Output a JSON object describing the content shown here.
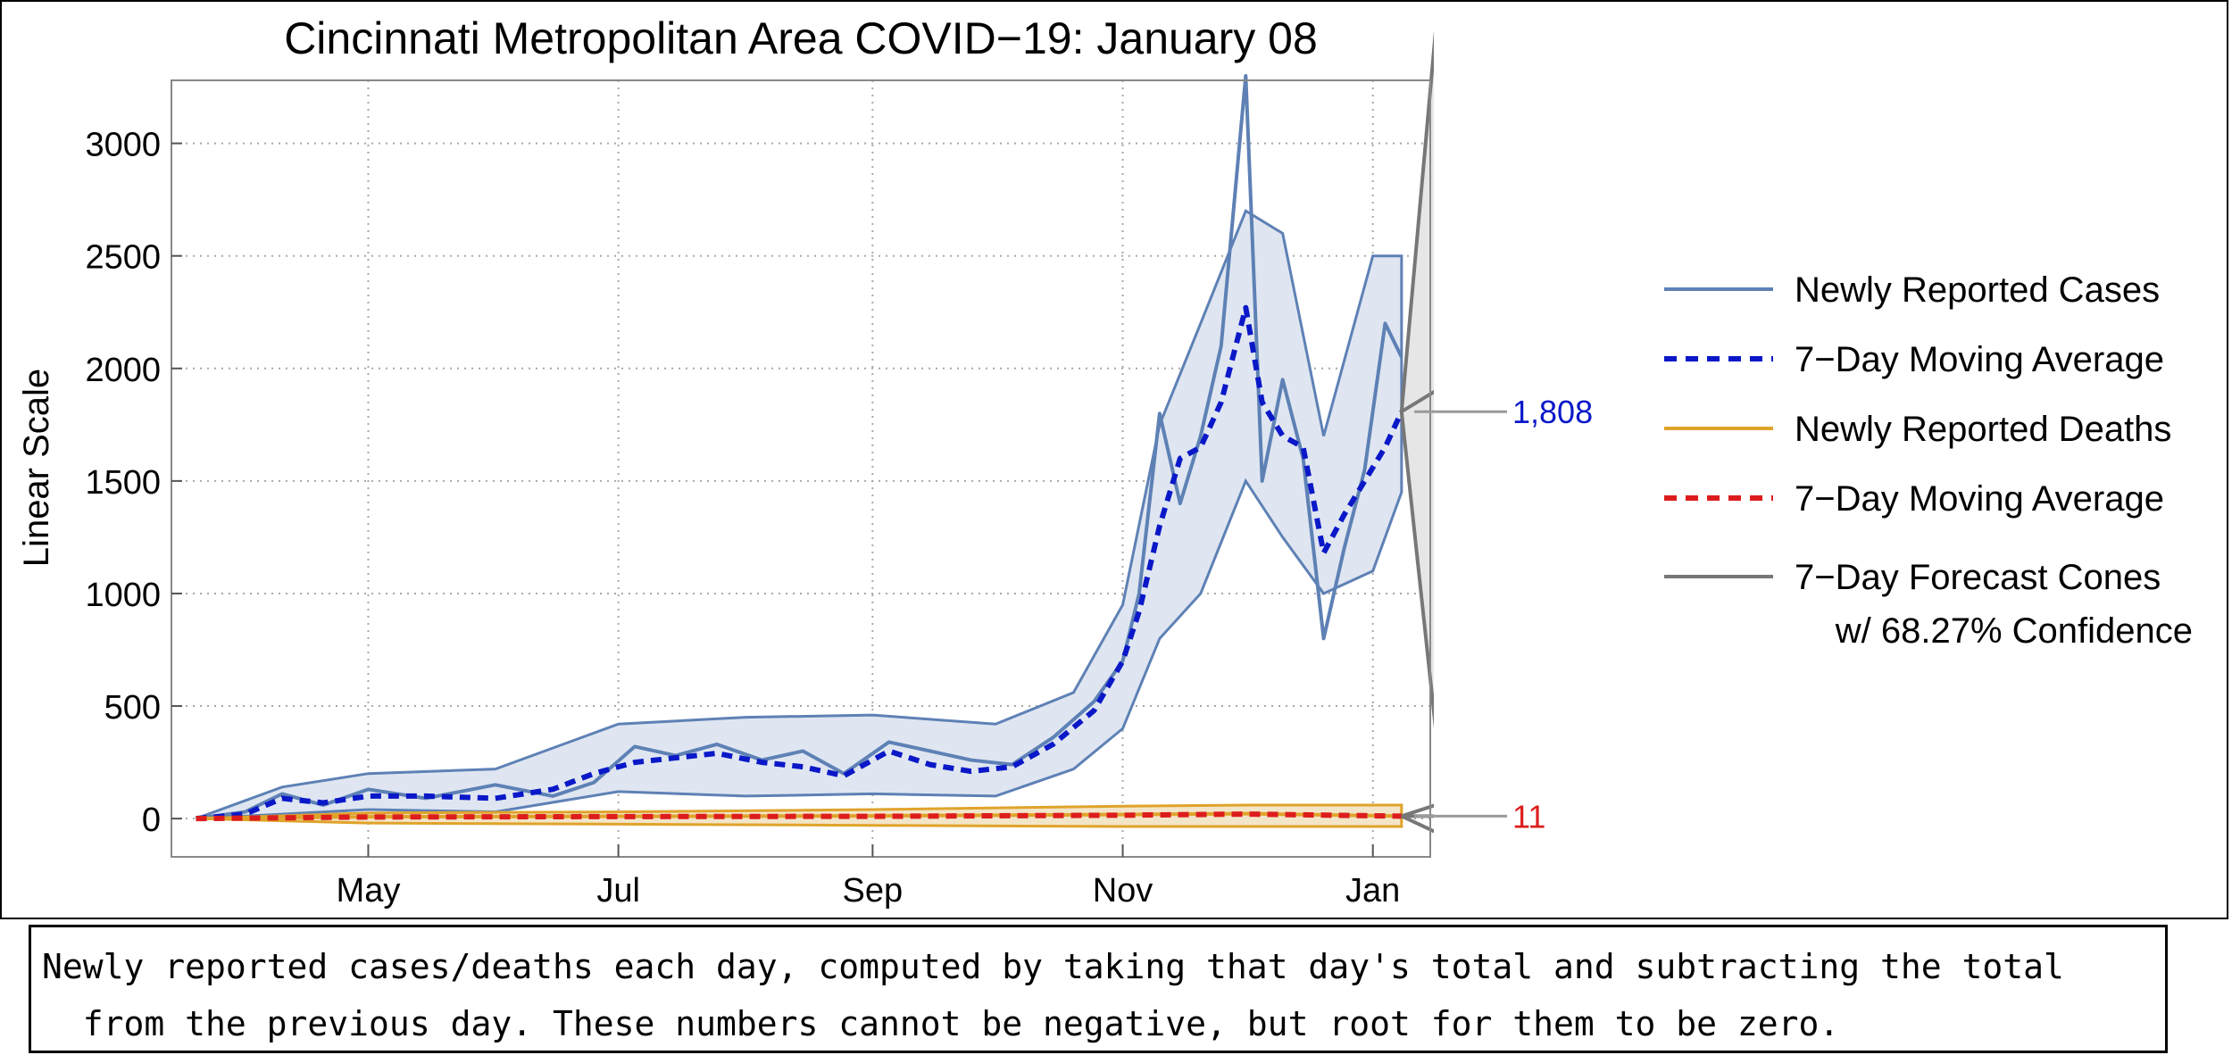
{
  "chart_data": {
    "type": "line",
    "title": "Cincinnati Metropolitan Area COVID−19: January 08",
    "ylabel": "Linear Scale",
    "xlabel": "",
    "ylim": [
      -170,
      3280
    ],
    "xlim": [
      "2020-03-14",
      "2021-01-15"
    ],
    "y_ticks": [
      0,
      500,
      1000,
      1500,
      2000,
      2500,
      3000
    ],
    "x_ticks": [
      {
        "date": "2020-05-01",
        "label": "May"
      },
      {
        "date": "2020-07-01",
        "label": "Jul"
      },
      {
        "date": "2020-09-01",
        "label": "Sep"
      },
      {
        "date": "2020-11-01",
        "label": "Nov"
      },
      {
        "date": "2021-01-01",
        "label": "Jan"
      }
    ],
    "grid": true,
    "legend_position": "right",
    "colors": {
      "cases": "#5e81b5",
      "cases_band": "#dfe6f1",
      "cases_avg": "#0a18c8",
      "deaths": "#e0a32a",
      "deaths_band": "#f3e5c8",
      "deaths_avg": "#dd1d1d",
      "forecast": "#777777"
    },
    "series": [
      {
        "name": "Newly Reported Cases",
        "x": [
          "2020-03-20",
          "2020-04-01",
          "2020-04-10",
          "2020-04-20",
          "2020-05-01",
          "2020-05-15",
          "2020-06-01",
          "2020-06-15",
          "2020-06-25",
          "2020-07-05",
          "2020-07-15",
          "2020-07-25",
          "2020-08-05",
          "2020-08-15",
          "2020-08-25",
          "2020-09-05",
          "2020-09-15",
          "2020-09-25",
          "2020-10-05",
          "2020-10-15",
          "2020-10-25",
          "2020-11-01",
          "2020-11-05",
          "2020-11-10",
          "2020-11-15",
          "2020-11-20",
          "2020-11-25",
          "2020-12-01",
          "2020-12-05",
          "2020-12-10",
          "2020-12-15",
          "2020-12-20",
          "2020-12-25",
          "2020-12-30",
          "2021-01-04",
          "2021-01-08"
        ],
        "values": [
          0,
          30,
          110,
          60,
          130,
          90,
          150,
          100,
          160,
          320,
          280,
          330,
          260,
          300,
          200,
          340,
          300,
          260,
          240,
          360,
          520,
          700,
          1000,
          1800,
          1400,
          1700,
          2100,
          3300,
          1500,
          1950,
          1600,
          800,
          1200,
          1550,
          2200,
          2050
        ]
      },
      {
        "name": "7−Day Moving Average",
        "x": [
          "2020-03-20",
          "2020-04-01",
          "2020-04-10",
          "2020-04-20",
          "2020-05-01",
          "2020-05-15",
          "2020-06-01",
          "2020-06-15",
          "2020-06-25",
          "2020-07-05",
          "2020-07-15",
          "2020-07-25",
          "2020-08-05",
          "2020-08-15",
          "2020-08-25",
          "2020-09-05",
          "2020-09-15",
          "2020-09-25",
          "2020-10-05",
          "2020-10-15",
          "2020-10-25",
          "2020-11-01",
          "2020-11-05",
          "2020-11-10",
          "2020-11-15",
          "2020-11-20",
          "2020-11-25",
          "2020-12-01",
          "2020-12-05",
          "2020-12-10",
          "2020-12-15",
          "2020-12-20",
          "2020-12-25",
          "2020-12-30",
          "2021-01-04",
          "2021-01-08"
        ],
        "values": [
          0,
          20,
          90,
          70,
          100,
          100,
          90,
          130,
          200,
          250,
          270,
          290,
          250,
          230,
          190,
          300,
          240,
          210,
          230,
          330,
          480,
          700,
          920,
          1300,
          1600,
          1650,
          1850,
          2270,
          1850,
          1700,
          1650,
          1180,
          1350,
          1500,
          1650,
          1808
        ]
      },
      {
        "name": "Newly Reported Deaths",
        "x": [
          "2020-03-20",
          "2020-05-01",
          "2020-07-01",
          "2020-09-01",
          "2020-11-01",
          "2020-12-01",
          "2021-01-08"
        ],
        "values": [
          0,
          8,
          10,
          12,
          18,
          22,
          11
        ]
      },
      {
        "name": "7−Day Moving Average",
        "x": [
          "2020-03-20",
          "2020-05-01",
          "2020-07-01",
          "2020-09-01",
          "2020-11-01",
          "2020-12-01",
          "2021-01-08"
        ],
        "values": [
          0,
          7,
          9,
          10,
          15,
          20,
          11
        ]
      }
    ],
    "cases_band": {
      "x": [
        "2020-03-20",
        "2020-04-10",
        "2020-05-01",
        "2020-06-01",
        "2020-07-01",
        "2020-08-01",
        "2020-09-01",
        "2020-10-01",
        "2020-10-20",
        "2020-11-01",
        "2020-11-10",
        "2020-11-20",
        "2020-12-01",
        "2020-12-10",
        "2020-12-20",
        "2021-01-01",
        "2021-01-08"
      ],
      "low": [
        0,
        20,
        40,
        30,
        120,
        100,
        110,
        100,
        220,
        400,
        800,
        1000,
        1500,
        1250,
        1000,
        1100,
        1450
      ],
      "high": [
        0,
        140,
        200,
        220,
        420,
        450,
        460,
        420,
        560,
        950,
        1750,
        2200,
        2700,
        2600,
        1700,
        2500,
        2500
      ]
    },
    "deaths_band": {
      "x": [
        "2020-03-20",
        "2020-05-01",
        "2020-07-01",
        "2020-09-01",
        "2020-11-01",
        "2020-12-01",
        "2021-01-08"
      ],
      "low": [
        0,
        -20,
        -25,
        -30,
        -35,
        -35,
        -35
      ],
      "high": [
        0,
        25,
        30,
        40,
        55,
        60,
        60
      ]
    },
    "forecast_cones": {
      "cases": {
        "center": 1900,
        "upper": 3500,
        "lower": 400
      },
      "deaths": {
        "center": 11,
        "upper": 60,
        "lower": -60
      }
    },
    "annotations": [
      {
        "series": "cases",
        "value": 1808,
        "label": "1,808"
      },
      {
        "series": "deaths",
        "value": 11,
        "label": "11"
      }
    ],
    "legend": [
      {
        "key": "cases",
        "style": "solid",
        "label": "Newly Reported Cases"
      },
      {
        "key": "cases_avg",
        "style": "dashed",
        "label": "7−Day Moving Average"
      },
      {
        "key": "deaths",
        "style": "solid",
        "label": "Newly Reported Deaths"
      },
      {
        "key": "deaths_avg",
        "style": "dashed",
        "label": "7−Day Moving Average"
      },
      {
        "key": "forecast",
        "style": "solid",
        "label": "7−Day Forecast Cones",
        "label2": "w/ 68.27% Confidence"
      }
    ]
  },
  "caption": "Newly reported cases/deaths each day, computed by taking that day's total and subtracting the total\n  from the previous day. These numbers cannot be negative, but root for them to be zero."
}
